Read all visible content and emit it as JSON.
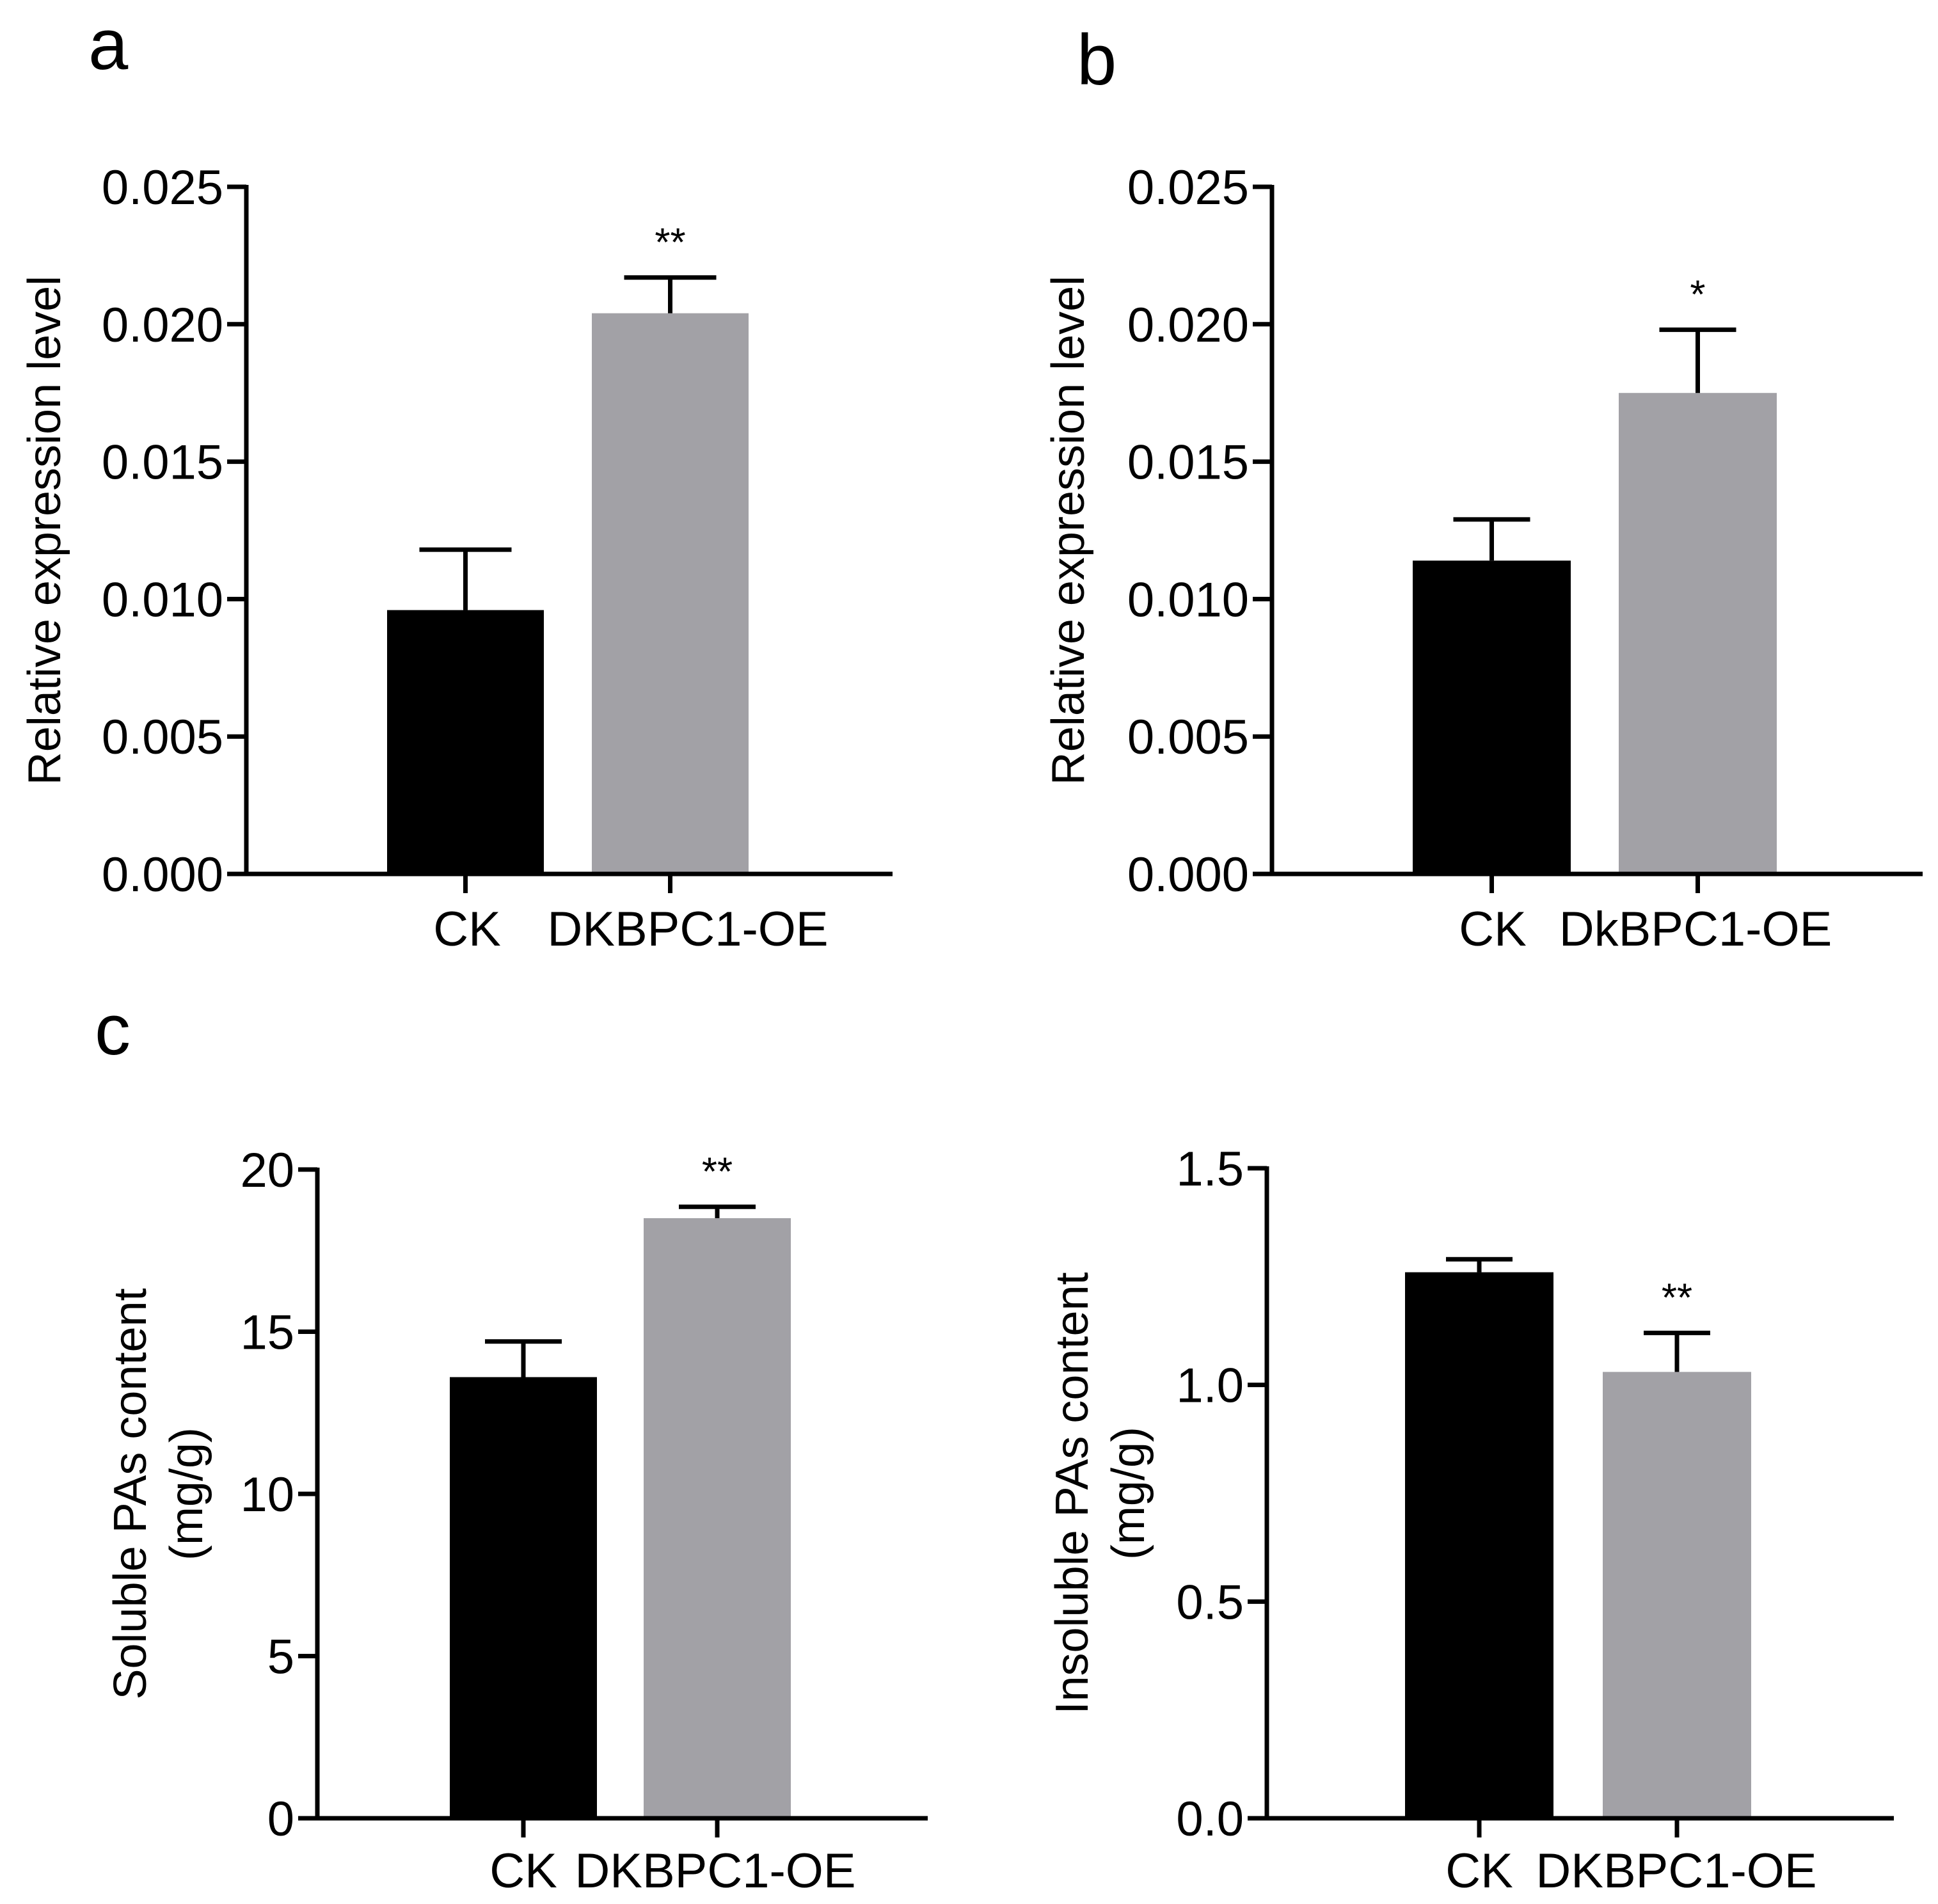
{
  "figure": {
    "panel_letters": [
      "a",
      "b",
      "c"
    ]
  },
  "chart_data": [
    {
      "panel": "a",
      "type": "bar",
      "categories": [
        "CK",
        "DKBPC1-OE"
      ],
      "values": [
        0.0096,
        0.0204
      ],
      "errors": [
        0.0022,
        0.0013
      ],
      "significance": [
        "",
        "**"
      ],
      "bar_colors": [
        "#000000",
        "#a2a1a6"
      ],
      "ylabel": "Relative expression level",
      "ylim": [
        0,
        0.025
      ],
      "yticks": [
        0,
        0.005,
        0.01,
        0.015,
        0.02,
        0.025
      ],
      "ytick_labels": [
        "0.000",
        "0.005",
        "0.010",
        "0.015",
        "0.020",
        "0.025"
      ],
      "grid": false
    },
    {
      "panel": "b",
      "type": "bar",
      "categories": [
        "CK",
        "DkBPC1-OE"
      ],
      "values": [
        0.0114,
        0.0175
      ],
      "errors": [
        0.0015,
        0.0023
      ],
      "significance": [
        "",
        "*"
      ],
      "bar_colors": [
        "#000000",
        "#a2a1a6"
      ],
      "ylabel": "Relative expression level",
      "ylim": [
        0,
        0.025
      ],
      "yticks": [
        0,
        0.005,
        0.01,
        0.015,
        0.02,
        0.025
      ],
      "ytick_labels": [
        "0.000",
        "0.005",
        "0.010",
        "0.015",
        "0.020",
        "0.025"
      ],
      "grid": false
    },
    {
      "panel": "c-left",
      "type": "bar",
      "categories": [
        "CK",
        "DKBPC1-OE"
      ],
      "values": [
        13.6,
        18.5
      ],
      "errors": [
        1.1,
        0.35
      ],
      "significance": [
        "",
        "**"
      ],
      "bar_colors": [
        "#000000",
        "#a2a1a6"
      ],
      "ylabel_lines": [
        "Soluble PAs content",
        "(mg/g)"
      ],
      "ylim": [
        0,
        20
      ],
      "yticks": [
        0,
        5,
        10,
        15,
        20
      ],
      "ytick_labels": [
        "0",
        "5",
        "10",
        "15",
        "20"
      ],
      "grid": false
    },
    {
      "panel": "c-right",
      "type": "bar",
      "categories": [
        "CK",
        "DKBPC1-OE"
      ],
      "values": [
        1.26,
        1.03
      ],
      "errors": [
        0.03,
        0.09
      ],
      "significance": [
        "",
        "**"
      ],
      "bar_colors": [
        "#000000",
        "#a2a1a6"
      ],
      "ylabel_lines": [
        "Insoluble PAs content",
        "(mg/g)"
      ],
      "ylim": [
        0,
        1.5
      ],
      "yticks": [
        0,
        0.5,
        1,
        1.5
      ],
      "ytick_labels": [
        "0.0",
        "0.5",
        "1.0",
        "1.5"
      ],
      "grid": false
    }
  ]
}
